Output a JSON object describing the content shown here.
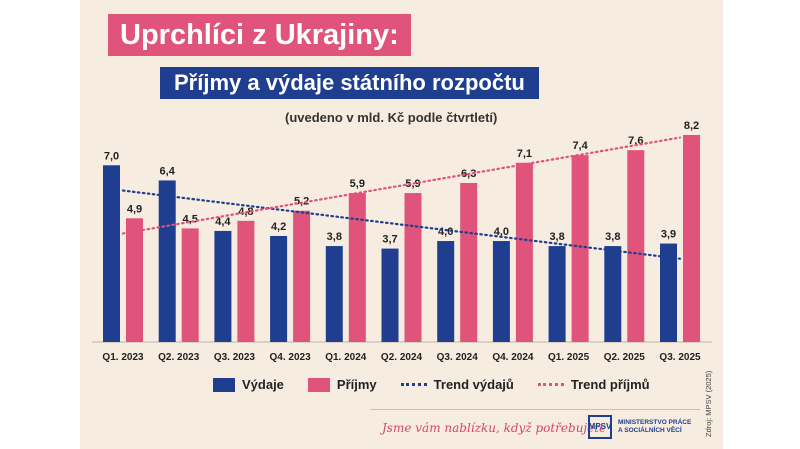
{
  "header": {
    "title": "Uprchlíci z Ukrajiny:",
    "subtitle": "Příjmy a výdaje státního rozpočtu",
    "note": "(uvedeno v mld. Kč podle čtvrtletí)"
  },
  "chart_data": {
    "type": "bar",
    "categories": [
      "Q1. 2023",
      "Q2. 2023",
      "Q3. 2023",
      "Q4. 2023",
      "Q1. 2024",
      "Q2. 2024",
      "Q3. 2024",
      "Q4. 2024",
      "Q1. 2025",
      "Q2. 2025",
      "Q3. 2025"
    ],
    "series": [
      {
        "name": "Výdaje",
        "values": [
          7.0,
          6.4,
          4.4,
          4.2,
          3.8,
          3.7,
          4.0,
          4.0,
          3.8,
          3.8,
          3.9
        ],
        "color": "#1f3e90"
      },
      {
        "name": "Příjmy",
        "values": [
          4.9,
          4.5,
          4.8,
          5.2,
          5.9,
          5.9,
          6.3,
          7.1,
          7.4,
          7.6,
          8.2
        ],
        "color": "#e0537a"
      }
    ],
    "value_labels": {
      "Výdaje": [
        "7,0",
        "6,4",
        "4,4",
        "4,2",
        "3,8",
        "3,7",
        "4,0",
        "4,0",
        "3,8",
        "3,8",
        "3,9"
      ],
      "Příjmy": [
        "4,9",
        "4,5",
        "4,8",
        "5,2",
        "5,9",
        "5,9",
        "6,3",
        "7,1",
        "7,4",
        "7,6",
        "8,2"
      ]
    },
    "trends": [
      {
        "name": "Trend výdajů",
        "start": 6.0,
        "end": 3.3,
        "color": "#1f3e90",
        "style": "dotted"
      },
      {
        "name": "Trend příjmů",
        "start": 4.3,
        "end": 8.1,
        "color": "#e0537a",
        "style": "dotted"
      }
    ],
    "ylim": [
      0,
      8.2
    ],
    "grid": false,
    "legend_position": "bottom"
  },
  "footer": {
    "slogan": "Jsme vám nablízku, když potřebujete",
    "logo_text": "MPSV",
    "ministry_line1": "MINISTERSTVO PRÁCE",
    "ministry_line2": "A SOCIÁLNÍCH VĚCÍ",
    "source": "Zdroj: MPSV (2025)"
  }
}
